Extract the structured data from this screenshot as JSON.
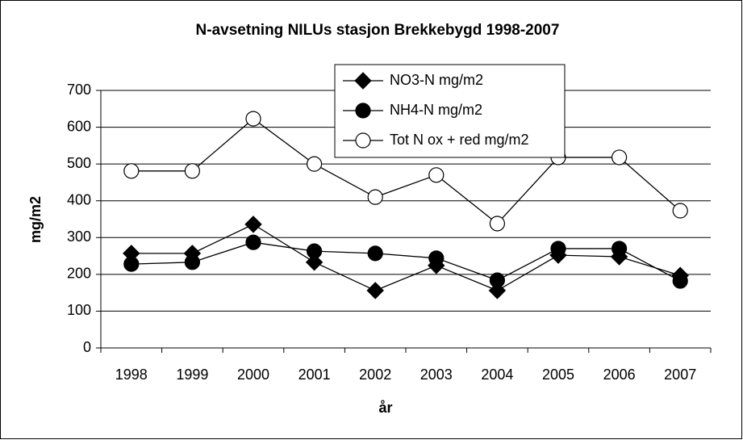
{
  "chart_data": {
    "type": "line",
    "title": "N-avsetning NILUs stasjon Brekkebygd 1998-2007",
    "x_label": "år",
    "y_label": "mg/m2",
    "categories": [
      "1998",
      "1999",
      "2000",
      "2001",
      "2002",
      "2003",
      "2004",
      "2005",
      "2006",
      "2007"
    ],
    "series": [
      {
        "name": "NO3-N mg/m2",
        "color": "#000000",
        "marker": "diamond",
        "marker_fill": "#000000",
        "values": [
          257,
          257,
          336,
          233,
          156,
          224,
          156,
          252,
          248,
          197
        ]
      },
      {
        "name": "NH4-N mg/m2",
        "color": "#000000",
        "marker": "circle",
        "marker_fill": "#000000",
        "values": [
          228,
          233,
          287,
          263,
          257,
          244,
          184,
          270,
          270,
          182
        ]
      },
      {
        "name": "Tot N ox + red mg/m2",
        "color": "#000000",
        "marker": "circle",
        "marker_fill": "#ffffff",
        "values": [
          481,
          481,
          623,
          500,
          410,
          470,
          338,
          518,
          518,
          373
        ]
      }
    ],
    "ylim": [
      0,
      700
    ],
    "yticks": [
      0,
      100,
      200,
      300,
      400,
      500,
      600,
      700
    ],
    "grid": true,
    "legend": "top"
  }
}
